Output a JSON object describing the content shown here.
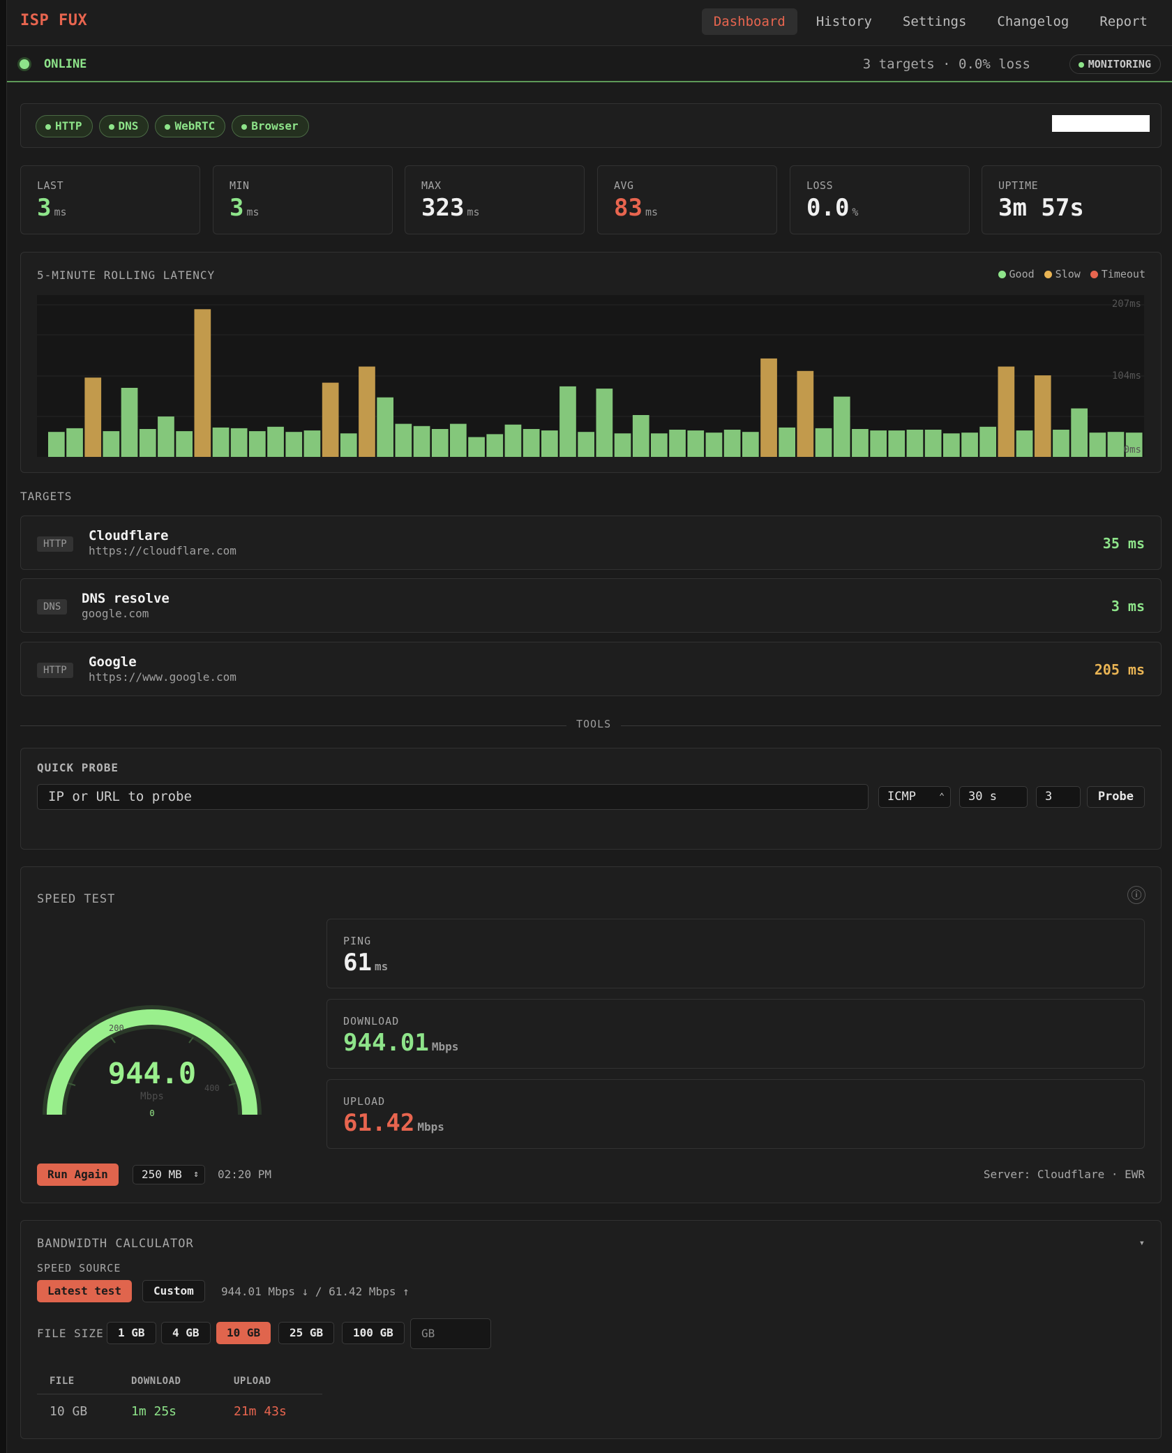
{
  "app": {
    "brand": "ISP FUX"
  },
  "nav": [
    {
      "label": "Dashboard",
      "active": true
    },
    {
      "label": "History",
      "active": false
    },
    {
      "label": "Settings",
      "active": false
    },
    {
      "label": "Changelog",
      "active": false
    },
    {
      "label": "Report",
      "active": false
    }
  ],
  "status": {
    "state": "ONLINE",
    "summary": "3 targets · 0.0% loss",
    "badge": "MONITORING"
  },
  "probes": [
    "HTTP",
    "DNS",
    "WebRTC",
    "Browser"
  ],
  "stats": [
    {
      "label": "LAST",
      "value": "3",
      "unit": "ms",
      "color": "#8ee48a"
    },
    {
      "label": "MIN",
      "value": "3",
      "unit": "ms",
      "color": "#8ee48a"
    },
    {
      "label": "MAX",
      "value": "323",
      "unit": "ms",
      "color": "#f0f0f0"
    },
    {
      "label": "AVG",
      "value": "83",
      "unit": "ms",
      "color": "#e8654f"
    },
    {
      "label": "LOSS",
      "value": "0.0",
      "unit": "%",
      "color": "#f0f0f0"
    },
    {
      "label": "UPTIME",
      "value": "3m 57s",
      "unit": "",
      "color": "#f0f0f0"
    }
  ],
  "latency": {
    "title": "5-MINUTE ROLLING LATENCY",
    "legend": [
      {
        "label": "Good",
        "color": "#8ee48a"
      },
      {
        "label": "Slow",
        "color": "#e9b454"
      },
      {
        "label": "Timeout",
        "color": "#e8654f"
      }
    ]
  },
  "chart_data": {
    "type": "bar",
    "y_ticks": [
      "207ms",
      "104ms",
      "0ms"
    ],
    "ylim": [
      0,
      207
    ],
    "values": [
      34,
      39,
      108,
      35,
      94,
      38,
      55,
      35,
      201,
      40,
      39,
      35,
      41,
      34,
      36,
      101,
      32,
      123,
      81,
      45,
      42,
      38,
      45,
      27,
      31,
      44,
      38,
      36,
      96,
      34,
      93,
      32,
      57,
      32,
      37,
      36,
      33,
      37,
      34,
      134,
      40,
      117,
      39,
      82,
      38,
      36,
      36,
      37,
      37,
      32,
      33,
      41,
      123,
      36,
      111,
      37,
      66,
      33,
      34,
      33
    ],
    "statuses": [
      "good",
      "good",
      "slow",
      "good",
      "good",
      "good",
      "good",
      "good",
      "slow",
      "good",
      "good",
      "good",
      "good",
      "good",
      "good",
      "slow",
      "good",
      "slow",
      "good",
      "good",
      "good",
      "good",
      "good",
      "good",
      "good",
      "good",
      "good",
      "good",
      "good",
      "good",
      "good",
      "good",
      "good",
      "good",
      "good",
      "good",
      "good",
      "good",
      "good",
      "slow",
      "good",
      "slow",
      "good",
      "good",
      "good",
      "good",
      "good",
      "good",
      "good",
      "good",
      "good",
      "good",
      "slow",
      "good",
      "slow",
      "good",
      "good",
      "good",
      "good",
      "good"
    ]
  },
  "targets_heading": "TARGETS",
  "targets": [
    {
      "type": "HTTP",
      "name": "Cloudflare",
      "url": "https://cloudflare.com",
      "ms": "35 ms",
      "color": "#8ee48a"
    },
    {
      "type": "DNS",
      "name": "DNS resolve",
      "url": "google.com",
      "ms": "3 ms",
      "color": "#8ee48a"
    },
    {
      "type": "HTTP",
      "name": "Google",
      "url": "https://www.google.com",
      "ms": "205 ms",
      "color": "#e9b454"
    }
  ],
  "tools_heading": "TOOLS",
  "quick_probe": {
    "title": "QUICK PROBE",
    "placeholder": "IP or URL to probe",
    "protocol": "ICMP",
    "duration": "30 s",
    "count": "3",
    "button": "Probe"
  },
  "speed_test": {
    "title": "SPEED TEST",
    "gauge_value": "944.0",
    "gauge_unit": "Mbps",
    "gauge_fraction": 1.0,
    "gauge_ticks": [
      "200",
      "400",
      "0"
    ],
    "ping": {
      "label": "PING",
      "value": "61",
      "unit": "ms",
      "color": "#f0f0f0"
    },
    "download": {
      "label": "DOWNLOAD",
      "value": "944.01",
      "unit": "Mbps",
      "color": "#8ee48a"
    },
    "upload": {
      "label": "UPLOAD",
      "value": "61.42",
      "unit": "Mbps",
      "color": "#e8654f"
    },
    "run_button": "Run Again",
    "size": "250 MB",
    "time": "02:20 PM",
    "server": "Server: Cloudflare · EWR"
  },
  "bandwidth": {
    "title": "BANDWIDTH CALCULATOR",
    "speed_source_label": "SPEED SOURCE",
    "source_latest": "Latest test",
    "source_custom": "Custom",
    "speed_summary": "944.01 Mbps ↓ / 61.42 Mbps ↑",
    "file_size_label": "FILE SIZE",
    "sizes": [
      {
        "label": "1 GB",
        "active": false
      },
      {
        "label": "4 GB",
        "active": false
      },
      {
        "label": "10 GB",
        "active": true
      },
      {
        "label": "25 GB",
        "active": false
      },
      {
        "label": "100 GB",
        "active": false
      }
    ],
    "unit_placeholder": "GB",
    "table": {
      "headers": [
        "FILE",
        "DOWNLOAD",
        "UPLOAD"
      ],
      "row": {
        "file": "10 GB",
        "download": "1m 25s",
        "upload": "21m 43s"
      }
    }
  }
}
